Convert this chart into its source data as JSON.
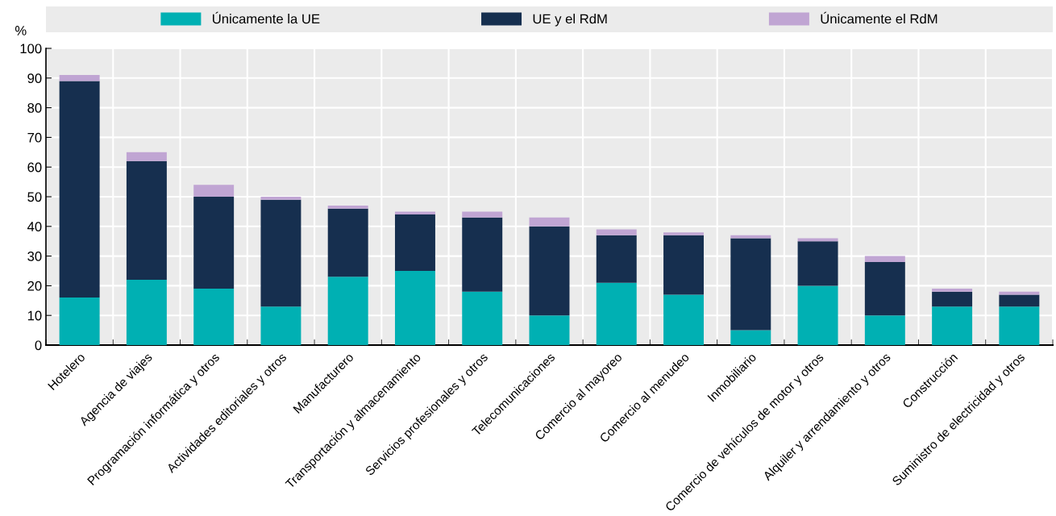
{
  "chart_data": {
    "type": "bar",
    "stacked": true,
    "ylabel": "%",
    "categories": [
      "Hotelero",
      "Agencia de viajes",
      "Programación informática y otros",
      "Actividades editoriales y otros",
      "Manufacturero",
      "Transportación y almacenamiento",
      "Servicios profesionales y otros",
      "Telecomunicaciones",
      "Comercio al mayoreo",
      "Comercio al menudeo",
      "Inmobiliario",
      "Comercio de vehículos de motor y otros",
      "Alquiler y arrendamiento y otros",
      "Construcción",
      "Suministro de electricidad y otros"
    ],
    "series": [
      {
        "name": "Únicamente la UE",
        "color": "#00b0b3",
        "values": [
          16,
          22,
          19,
          13,
          23,
          25,
          18,
          10,
          21,
          17,
          5,
          20,
          10,
          13,
          13
        ]
      },
      {
        "name": "UE y el RdM",
        "color": "#162f4f",
        "values": [
          73,
          40,
          31,
          36,
          23,
          19,
          25,
          30,
          16,
          20,
          31,
          15,
          18,
          5,
          4
        ]
      },
      {
        "name": "Únicamente el RdM",
        "color": "#c0a5d3",
        "values": [
          2,
          3,
          4,
          1,
          1,
          1,
          2,
          3,
          2,
          1,
          1,
          1,
          2,
          1,
          1
        ]
      }
    ],
    "ylim": [
      0,
      100
    ],
    "yticks": [
      0,
      10,
      20,
      30,
      40,
      50,
      60,
      70,
      80,
      90,
      100
    ],
    "grid": true,
    "legend": "top"
  }
}
